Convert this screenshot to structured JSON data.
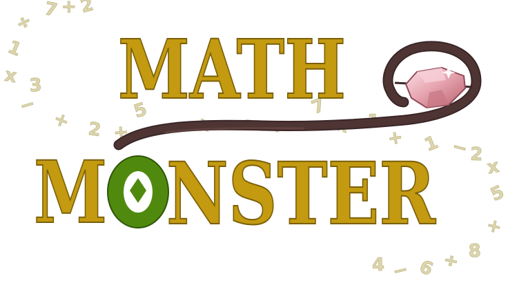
{
  "logo": {
    "line1": "MATH",
    "line2_before": "M",
    "line2_o": "O",
    "line2_after": "NSTER",
    "text_color": "#c39a10",
    "text_shadow_color": "#7a5f08",
    "o_color": "#4f8a0e",
    "o_eye_color": "#f2d64a",
    "staff_color": "#4a3130",
    "gem_color": "#e9a8b3"
  },
  "math_symbols": [
    "÷",
    "7",
    "+",
    "2",
    "1",
    "x",
    "3",
    "−",
    "+",
    "2",
    "+",
    "5",
    "x",
    "−",
    "÷",
    "7",
    "x",
    "1",
    "+",
    "1",
    "−",
    "2",
    "x",
    "5",
    "+",
    "4",
    "−",
    "6",
    "÷",
    "8"
  ]
}
